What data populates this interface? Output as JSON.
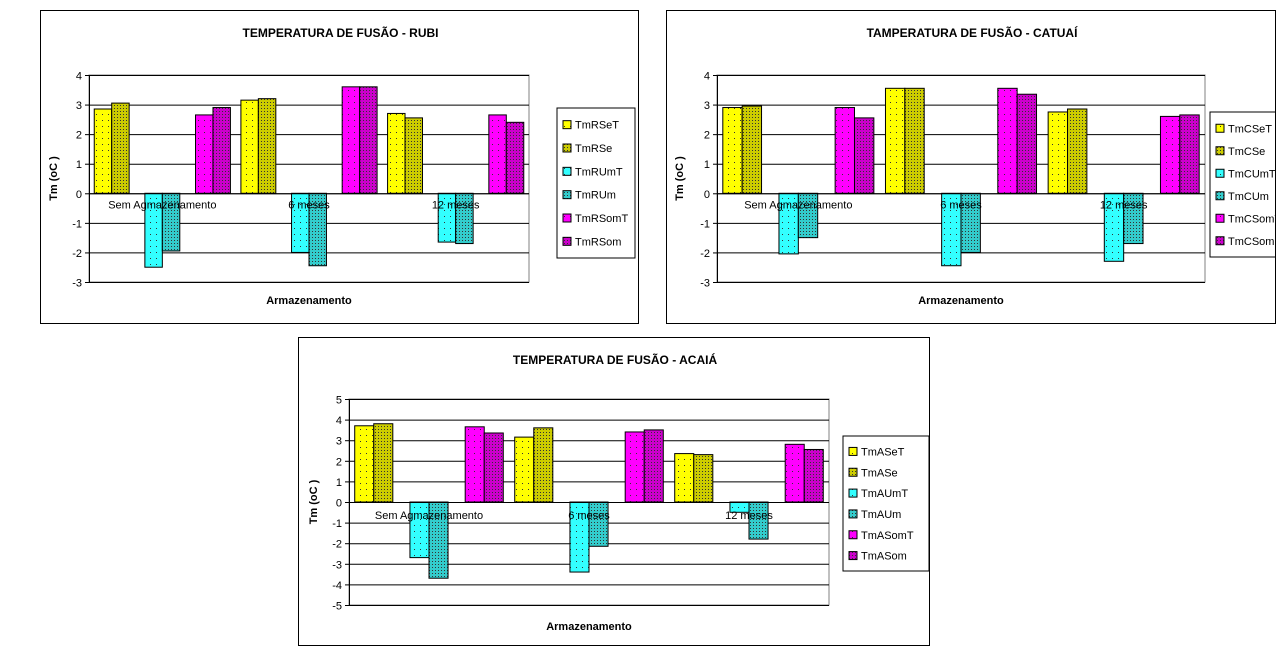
{
  "chart_data": [
    {
      "type": "bar",
      "title": "TEMPERATURA DE FUSÃO - RUBI",
      "xlabel": "Armazenamento",
      "ylabel": "Tm (oC )",
      "ylim": [
        -3,
        4
      ],
      "yticks": [
        "-3",
        "-2",
        "-1",
        "0",
        "1",
        "2",
        "3",
        "4"
      ],
      "categories": [
        "Sem Agmazenamento",
        "6 meses",
        "12 meses"
      ],
      "grid": true,
      "legend_position": "right",
      "series": [
        {
          "name": "TmRSeT",
          "values": [
            2.85,
            3.15,
            2.7
          ],
          "color": "#ffff00",
          "pattern": "dots-sparse"
        },
        {
          "name": "TmRSe",
          "values": [
            3.05,
            3.2,
            2.55
          ],
          "color": "#cccc00",
          "pattern": "dots-dense"
        },
        {
          "name": "TmRUmT",
          "values": [
            -2.5,
            -2.0,
            -1.65
          ],
          "color": "#33ffff",
          "pattern": "dots-sparse"
        },
        {
          "name": "TmRUm",
          "values": [
            -1.95,
            -2.45,
            -1.7
          ],
          "color": "#33cccc",
          "pattern": "dots-dense"
        },
        {
          "name": "TmRSomT",
          "values": [
            2.65,
            3.6,
            2.65
          ],
          "color": "#ff00ff",
          "pattern": "dots-sparse"
        },
        {
          "name": "TmRSom",
          "values": [
            2.9,
            3.6,
            2.4
          ],
          "color": "#cc00cc",
          "pattern": "dots-dense"
        }
      ]
    },
    {
      "type": "bar",
      "title": "TAMPERATURA DE FUSÃO - CATUAÍ",
      "xlabel": "Armazenamento",
      "ylabel": "Tm (oC )",
      "ylim": [
        -3,
        4
      ],
      "yticks": [
        "-3",
        "-2",
        "-1",
        "0",
        "1",
        "2",
        "3",
        "4"
      ],
      "categories": [
        "Sem Agmazenamento",
        "6 meses",
        "12 meses"
      ],
      "grid": true,
      "legend_position": "right",
      "series": [
        {
          "name": "TmCSeT",
          "values": [
            2.9,
            3.55,
            2.75
          ],
          "color": "#ffff00",
          "pattern": "dots-sparse"
        },
        {
          "name": "TmCSe",
          "values": [
            2.95,
            3.55,
            2.85
          ],
          "color": "#cccc00",
          "pattern": "dots-dense"
        },
        {
          "name": "TmCUmT",
          "values": [
            -2.05,
            -2.45,
            -2.3
          ],
          "color": "#33ffff",
          "pattern": "dots-sparse"
        },
        {
          "name": "TmCUm",
          "values": [
            -1.5,
            -2.0,
            -1.7
          ],
          "color": "#33cccc",
          "pattern": "dots-dense"
        },
        {
          "name": "TmCSomT",
          "values": [
            2.9,
            3.55,
            2.6
          ],
          "color": "#ff00ff",
          "pattern": "dots-sparse"
        },
        {
          "name": "TmCSom",
          "values": [
            2.55,
            3.35,
            2.65
          ],
          "color": "#cc00cc",
          "pattern": "dots-dense"
        }
      ]
    },
    {
      "type": "bar",
      "title": "TEMPERATURA DE FUSÃO - ACAIÁ",
      "xlabel": "Armazenamento",
      "ylabel": "Tm (oC )",
      "ylim": [
        -5,
        5
      ],
      "yticks": [
        "-5",
        "-4",
        "-3",
        "-2",
        "-1",
        "0",
        "1",
        "2",
        "3",
        "4",
        "5"
      ],
      "categories": [
        "Sem Agmazenamento",
        "6 meses",
        "12 meses"
      ],
      "grid": true,
      "legend_position": "right",
      "series": [
        {
          "name": "TmASeT",
          "values": [
            3.7,
            3.15,
            2.35
          ],
          "color": "#ffff00",
          "pattern": "dots-sparse"
        },
        {
          "name": "TmASe",
          "values": [
            3.8,
            3.6,
            2.3
          ],
          "color": "#cccc00",
          "pattern": "dots-dense"
        },
        {
          "name": "TmAUmT",
          "values": [
            -2.7,
            -3.4,
            -0.5
          ],
          "color": "#33ffff",
          "pattern": "dots-sparse"
        },
        {
          "name": "TmAUm",
          "values": [
            -3.7,
            -2.15,
            -1.8
          ],
          "color": "#33cccc",
          "pattern": "dots-dense"
        },
        {
          "name": "TmASomT",
          "values": [
            3.65,
            3.4,
            2.8
          ],
          "color": "#ff00ff",
          "pattern": "dots-sparse"
        },
        {
          "name": "TmASom",
          "values": [
            3.35,
            3.5,
            2.55
          ],
          "color": "#cc00cc",
          "pattern": "dots-dense"
        }
      ]
    }
  ]
}
